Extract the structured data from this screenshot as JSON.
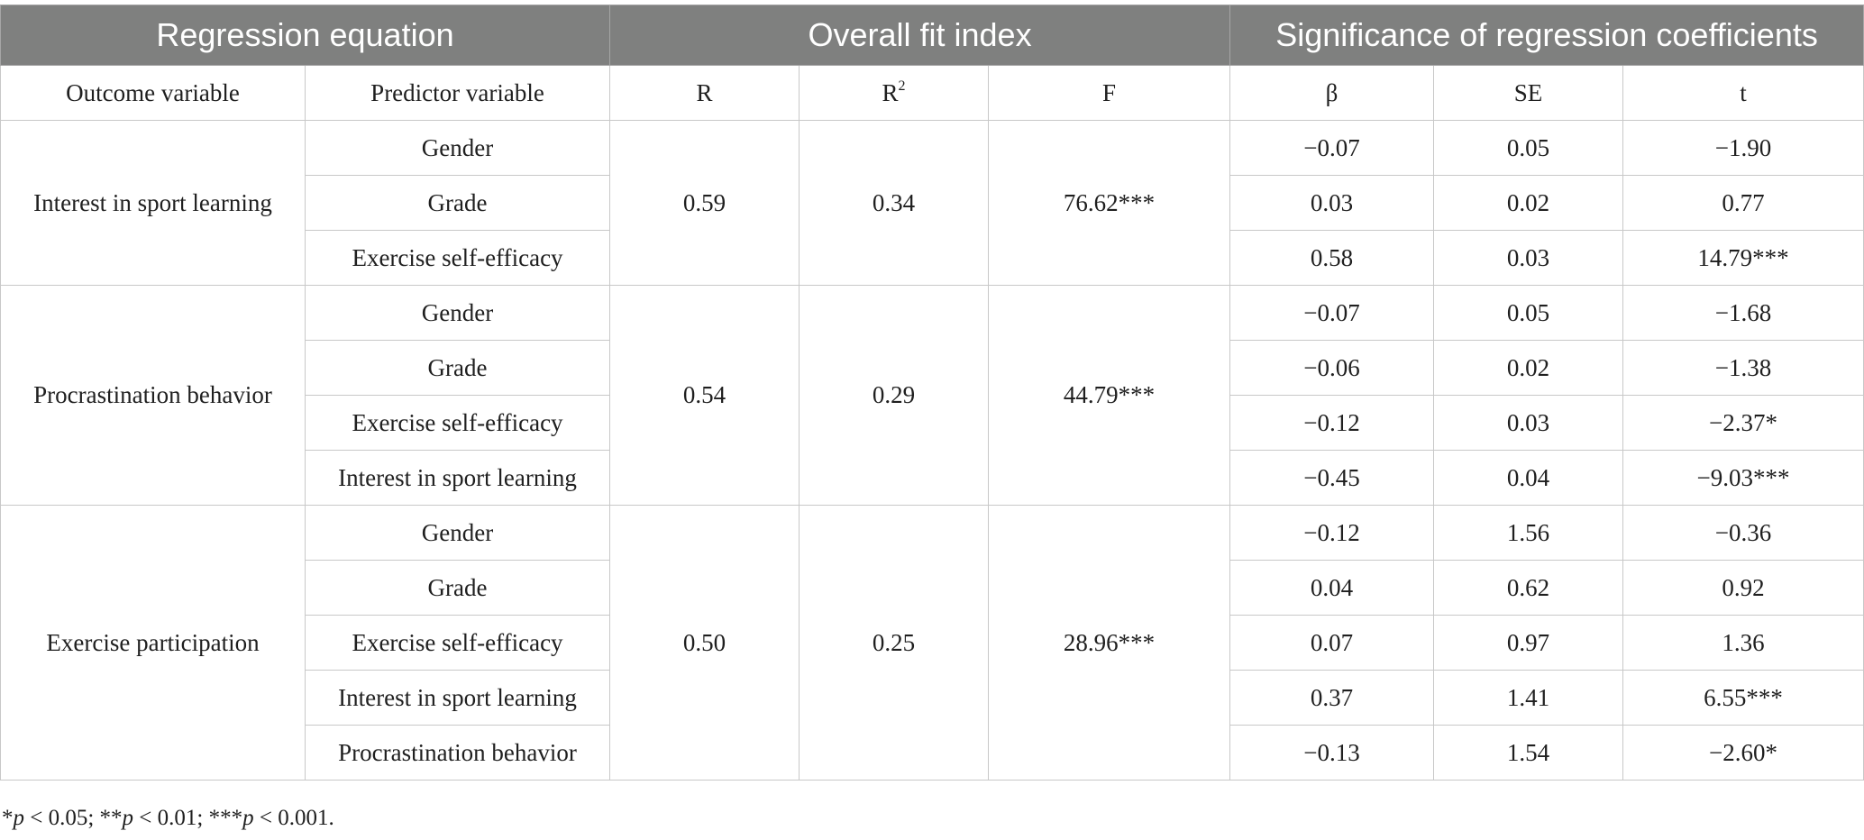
{
  "header_groups": {
    "regression_equation": "Regression equation",
    "overall_fit": "Overall fit index",
    "significance": "Significance of regression coefficients"
  },
  "columns": {
    "outcome": "Outcome variable",
    "predictor": "Predictor variable",
    "r": "R",
    "r2_base": "R",
    "r2_sup": "2",
    "f": "F",
    "beta": "β",
    "se": "SE",
    "t": "t"
  },
  "blocks": [
    {
      "outcome": "Interest in sport learning",
      "R": "0.59",
      "R2": "0.34",
      "F": "76.62***",
      "rows": [
        {
          "predictor": "Gender",
          "beta": "−0.07",
          "se": "0.05",
          "t": "−1.90"
        },
        {
          "predictor": "Grade",
          "beta": "0.03",
          "se": "0.02",
          "t": "0.77"
        },
        {
          "predictor": "Exercise self-efficacy",
          "beta": "0.58",
          "se": "0.03",
          "t": "14.79***"
        }
      ]
    },
    {
      "outcome": "Procrastination behavior",
      "R": "0.54",
      "R2": "0.29",
      "F": "44.79***",
      "rows": [
        {
          "predictor": "Gender",
          "beta": "−0.07",
          "se": "0.05",
          "t": "−1.68"
        },
        {
          "predictor": "Grade",
          "beta": "−0.06",
          "se": "0.02",
          "t": "−1.38"
        },
        {
          "predictor": "Exercise self-efficacy",
          "beta": "−0.12",
          "se": "0.03",
          "t": "−2.37*"
        },
        {
          "predictor": "Interest in sport learning",
          "beta": "−0.45",
          "se": "0.04",
          "t": "−9.03***"
        }
      ]
    },
    {
      "outcome": "Exercise participation",
      "R": "0.50",
      "R2": "0.25",
      "F": "28.96***",
      "rows": [
        {
          "predictor": "Gender",
          "beta": "−0.12",
          "se": "1.56",
          "t": "−0.36"
        },
        {
          "predictor": "Grade",
          "beta": "0.04",
          "se": "0.62",
          "t": "0.92"
        },
        {
          "predictor": "Exercise self-efficacy",
          "beta": "0.07",
          "se": "0.97",
          "t": "1.36"
        },
        {
          "predictor": "Interest in sport learning",
          "beta": "0.37",
          "se": "1.41",
          "t": "6.55***"
        },
        {
          "predictor": "Procrastination behavior",
          "beta": "−0.13",
          "se": "1.54",
          "t": "−2.60*"
        }
      ]
    }
  ],
  "footnote": {
    "star1": "*",
    "p1": "p",
    "t1": " < 0.05; **",
    "p2": "p",
    "t2": " < 0.01; ***",
    "p3": "p",
    "t3": " < 0.001."
  }
}
